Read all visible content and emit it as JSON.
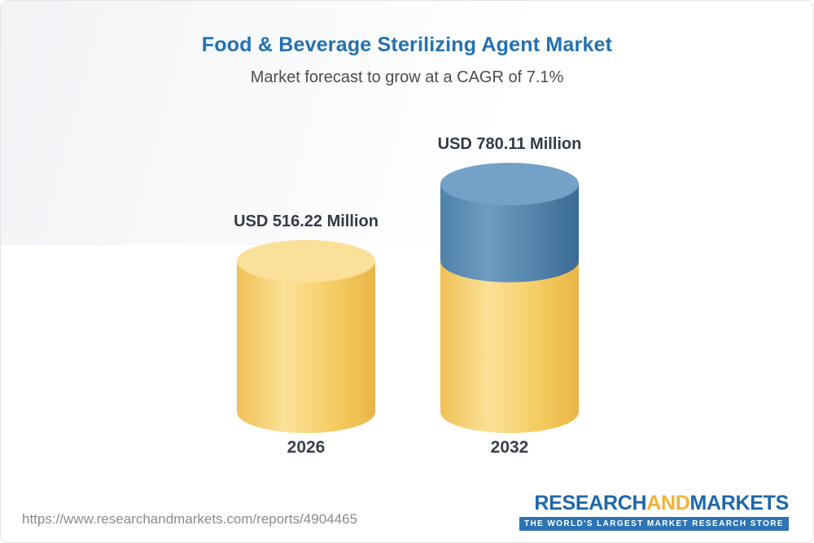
{
  "title": "Food & Beverage Sterilizing Agent Market",
  "subtitle": "Market forecast to grow at a CAGR of 7.1%",
  "footer": {
    "url": "https://www.researchandmarkets.com/reports/4904465",
    "logo": {
      "part1": "RESEARCH",
      "part2": "AND",
      "part3": "MARKETS",
      "tagline": "THE WORLD'S LARGEST MARKET RESEARCH STORE"
    }
  },
  "colors": {
    "title_blue": "#2271b2",
    "yellow_body_light": "#fbe198",
    "yellow_body_dark": "#e9b646",
    "yellow_top": "#fbe09a",
    "blue_body_light": "#6e9cc2",
    "blue_body_dark": "#3a6b94",
    "blue_top": "#73a1c7",
    "label_dark": "#333b46"
  },
  "chart_data": {
    "type": "bar",
    "bar_style": "3d-cylinder",
    "categories": [
      "2026",
      "2032"
    ],
    "values": [
      516.22,
      780.11
    ],
    "value_labels": [
      "USD 516.22 Million",
      "USD 780.11 Million"
    ],
    "unit": "USD Million",
    "title": "Food & Beverage Sterilizing Agent Market",
    "subtitle": "Market forecast to grow at a CAGR of 7.1%",
    "cagr": "7.1%",
    "ylim": [
      0,
      780.11
    ],
    "legend": "none",
    "grid": false,
    "series_note": "2032 cylinder is yellow up to the 2026 value (516.22) and blue for the incremental growth up to 780.11"
  }
}
